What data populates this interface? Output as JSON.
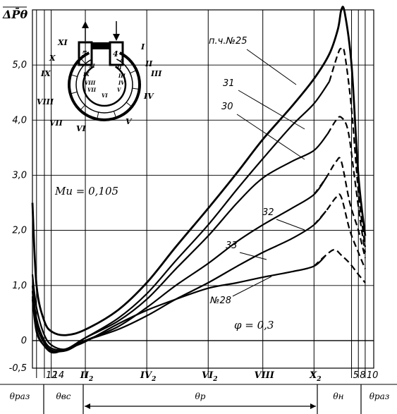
{
  "chart_data": {
    "type": "line",
    "ylabel": "ΔP̄θ",
    "ylim": [
      -0.5,
      6.0
    ],
    "xlim": [
      0,
      1
    ],
    "yticks": [
      {
        "v": 5.0,
        "label": "5,0"
      },
      {
        "v": 4.0,
        "label": "4,0"
      },
      {
        "v": 3.0,
        "label": "3,0"
      },
      {
        "v": 2.0,
        "label": "2,0"
      },
      {
        "v": 1.0,
        "label": "1,0"
      },
      {
        "v": 0.0,
        "label": "0"
      },
      {
        "v": -0.5,
        "label": "-0,5"
      }
    ],
    "xticks": [
      {
        "x": 0.035,
        "label": "12"
      },
      {
        "x": 0.055,
        "label": "14"
      },
      {
        "x": 0.155,
        "label": "II2"
      },
      {
        "x": 0.335,
        "label": "IV2"
      },
      {
        "x": 0.515,
        "label": "VI2"
      },
      {
        "x": 0.675,
        "label": "VIII"
      },
      {
        "x": 0.825,
        "label": "X2"
      },
      {
        "x": 0.935,
        "label": "5"
      },
      {
        "x": 0.955,
        "label": "8"
      },
      {
        "x": 0.975,
        "label": "10"
      }
    ],
    "vlines": [
      0.012,
      0.035,
      0.055,
      0.155,
      0.335,
      0.515,
      0.675,
      0.825,
      0.935,
      0.955,
      0.975
    ],
    "series": [
      {
        "name": "п.ч.№25",
        "dashed_from": null,
        "points": [
          [
            0.0,
            2.5
          ],
          [
            0.012,
            1.0
          ],
          [
            0.035,
            0.35
          ],
          [
            0.06,
            0.15
          ],
          [
            0.1,
            0.1
          ],
          [
            0.155,
            0.2
          ],
          [
            0.25,
            0.55
          ],
          [
            0.335,
            1.05
          ],
          [
            0.42,
            1.7
          ],
          [
            0.515,
            2.4
          ],
          [
            0.6,
            3.05
          ],
          [
            0.675,
            3.65
          ],
          [
            0.76,
            4.25
          ],
          [
            0.825,
            4.75
          ],
          [
            0.87,
            5.2
          ],
          [
            0.895,
            5.65
          ],
          [
            0.905,
            6.0
          ],
          [
            0.915,
            5.95
          ],
          [
            0.935,
            5.0
          ],
          [
            0.955,
            3.0
          ],
          [
            0.975,
            1.9
          ]
        ]
      },
      {
        "name": "31",
        "dashed_from": 0.88,
        "points": [
          [
            0.0,
            1.2
          ],
          [
            0.012,
            0.6
          ],
          [
            0.035,
            0.1
          ],
          [
            0.06,
            -0.1
          ],
          [
            0.1,
            -0.15
          ],
          [
            0.155,
            0.05
          ],
          [
            0.25,
            0.4
          ],
          [
            0.335,
            0.85
          ],
          [
            0.42,
            1.45
          ],
          [
            0.515,
            2.1
          ],
          [
            0.6,
            2.75
          ],
          [
            0.675,
            3.3
          ],
          [
            0.76,
            3.9
          ],
          [
            0.825,
            4.3
          ],
          [
            0.87,
            4.7
          ],
          [
            0.895,
            5.2
          ],
          [
            0.905,
            5.3
          ],
          [
            0.915,
            5.2
          ],
          [
            0.935,
            4.2
          ],
          [
            0.955,
            2.7
          ],
          [
            0.975,
            1.7
          ]
        ]
      },
      {
        "name": "30",
        "dashed_from": 0.88,
        "points": [
          [
            0.0,
            1.0
          ],
          [
            0.012,
            0.4
          ],
          [
            0.035,
            0.0
          ],
          [
            0.06,
            -0.15
          ],
          [
            0.1,
            -0.15
          ],
          [
            0.155,
            0.05
          ],
          [
            0.25,
            0.35
          ],
          [
            0.335,
            0.75
          ],
          [
            0.42,
            1.3
          ],
          [
            0.515,
            1.9
          ],
          [
            0.6,
            2.5
          ],
          [
            0.675,
            2.95
          ],
          [
            0.76,
            3.25
          ],
          [
            0.825,
            3.45
          ],
          [
            0.865,
            3.75
          ],
          [
            0.89,
            4.0
          ],
          [
            0.905,
            4.05
          ],
          [
            0.925,
            3.8
          ],
          [
            0.945,
            2.9
          ],
          [
            0.96,
            2.2
          ],
          [
            0.975,
            1.6
          ]
        ]
      },
      {
        "name": "32",
        "dashed_from": 0.86,
        "points": [
          [
            0.0,
            0.9
          ],
          [
            0.012,
            0.3
          ],
          [
            0.035,
            -0.05
          ],
          [
            0.06,
            -0.18
          ],
          [
            0.1,
            -0.18
          ],
          [
            0.155,
            0.0
          ],
          [
            0.25,
            0.25
          ],
          [
            0.335,
            0.6
          ],
          [
            0.42,
            1.0
          ],
          [
            0.515,
            1.4
          ],
          [
            0.6,
            1.8
          ],
          [
            0.675,
            2.1
          ],
          [
            0.76,
            2.4
          ],
          [
            0.825,
            2.65
          ],
          [
            0.86,
            2.95
          ],
          [
            0.89,
            3.25
          ],
          [
            0.905,
            3.25
          ],
          [
            0.93,
            2.5
          ],
          [
            0.955,
            2.0
          ],
          [
            0.975,
            1.5
          ]
        ]
      },
      {
        "name": "33",
        "dashed_from": 0.86,
        "points": [
          [
            0.0,
            0.8
          ],
          [
            0.012,
            0.2
          ],
          [
            0.035,
            -0.1
          ],
          [
            0.06,
            -0.2
          ],
          [
            0.1,
            -0.15
          ],
          [
            0.155,
            0.0
          ],
          [
            0.25,
            0.2
          ],
          [
            0.335,
            0.45
          ],
          [
            0.42,
            0.75
          ],
          [
            0.515,
            1.05
          ],
          [
            0.6,
            1.35
          ],
          [
            0.675,
            1.6
          ],
          [
            0.76,
            1.85
          ],
          [
            0.825,
            2.1
          ],
          [
            0.86,
            2.35
          ],
          [
            0.89,
            2.6
          ],
          [
            0.905,
            2.6
          ],
          [
            0.93,
            2.0
          ],
          [
            0.955,
            1.6
          ],
          [
            0.975,
            1.3
          ]
        ]
      },
      {
        "name": "№28",
        "dashed_from": 0.86,
        "points": [
          [
            0.0,
            0.75
          ],
          [
            0.012,
            0.15
          ],
          [
            0.035,
            -0.1
          ],
          [
            0.06,
            -0.22
          ],
          [
            0.1,
            -0.15
          ],
          [
            0.155,
            -0.02
          ],
          [
            0.25,
            0.3
          ],
          [
            0.335,
            0.55
          ],
          [
            0.42,
            0.75
          ],
          [
            0.515,
            0.95
          ],
          [
            0.6,
            1.05
          ],
          [
            0.675,
            1.15
          ],
          [
            0.76,
            1.25
          ],
          [
            0.825,
            1.35
          ],
          [
            0.86,
            1.55
          ],
          [
            0.885,
            1.65
          ],
          [
            0.905,
            1.55
          ],
          [
            0.93,
            1.4
          ],
          [
            0.955,
            1.2
          ],
          [
            0.975,
            1.05
          ]
        ]
      }
    ],
    "annotations": {
      "mu": "Mи = 0,105",
      "phi": "φ = 0,3"
    },
    "zones": [
      {
        "label": "θраз"
      },
      {
        "label": "θвс"
      },
      {
        "label": "θр"
      },
      {
        "label": "θн"
      },
      {
        "label": "θраз"
      }
    ],
    "inset": {
      "left_labels": [
        "XI",
        "X",
        "IX",
        "VIII",
        "VII",
        "VI"
      ],
      "right_labels": [
        "I",
        "II",
        "III",
        "IV",
        "V"
      ],
      "top_numbers": [
        "5",
        "4"
      ],
      "inner_left": [
        "XI",
        "IX",
        "VIII",
        "VII"
      ],
      "inner_right": [
        "II",
        "III",
        "IV",
        "V"
      ],
      "inner_bottom": [
        "VI"
      ]
    }
  }
}
